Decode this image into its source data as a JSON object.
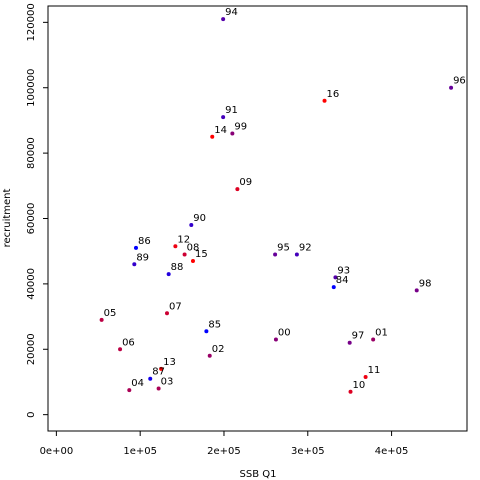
{
  "chart_data": {
    "type": "scatter",
    "title": "",
    "xlabel": "SSB Q1",
    "ylabel": "recruitment",
    "xlim": [
      -10000,
      490000
    ],
    "ylim": [
      -5000,
      125000
    ],
    "x_ticks": [
      0,
      100000,
      200000,
      300000,
      400000
    ],
    "x_tick_labels": [
      "0e+00",
      "1e+05",
      "2e+05",
      "3e+05",
      "4e+05"
    ],
    "y_ticks": [
      0,
      20000,
      40000,
      60000,
      80000,
      100000,
      120000
    ],
    "y_tick_labels": [
      "0",
      "20000",
      "40000",
      "60000",
      "80000",
      "100000",
      "120000"
    ],
    "grid": false,
    "legend": "none",
    "colors": {
      "early": "#0000ff",
      "late": "#ff0000",
      "frame": "#000000"
    },
    "points": [
      {
        "label": "86",
        "x": 95000,
        "y": 51000,
        "color": "#0000ff"
      },
      {
        "label": "87",
        "x": 112000,
        "y": 11000,
        "color": "#1100ee"
      },
      {
        "label": "88",
        "x": 134000,
        "y": 43000,
        "color": "#2200dd"
      },
      {
        "label": "89",
        "x": 93000,
        "y": 46000,
        "color": "#3300cc"
      },
      {
        "label": "90",
        "x": 161000,
        "y": 58000,
        "color": "#3300cc"
      },
      {
        "label": "91",
        "x": 199000,
        "y": 91000,
        "color": "#4400bb"
      },
      {
        "label": "92",
        "x": 287000,
        "y": 49000,
        "color": "#4400bb"
      },
      {
        "label": "93",
        "x": 333000,
        "y": 42000,
        "color": "#5500aa"
      },
      {
        "label": "94",
        "x": 199000,
        "y": 121000,
        "color": "#5500aa"
      },
      {
        "label": "95",
        "x": 261000,
        "y": 49000,
        "color": "#660099"
      },
      {
        "label": "96",
        "x": 471000,
        "y": 100000,
        "color": "#660099"
      },
      {
        "label": "97",
        "x": 350000,
        "y": 22000,
        "color": "#770088"
      },
      {
        "label": "98",
        "x": 430000,
        "y": 38000,
        "color": "#770088"
      },
      {
        "label": "99",
        "x": 210000,
        "y": 86000,
        "color": "#880077"
      },
      {
        "label": "00",
        "x": 262000,
        "y": 23000,
        "color": "#880077"
      },
      {
        "label": "01",
        "x": 378000,
        "y": 23000,
        "color": "#990066"
      },
      {
        "label": "02",
        "x": 183000,
        "y": 18000,
        "color": "#990066"
      },
      {
        "label": "03",
        "x": 122000,
        "y": 8000,
        "color": "#aa0055"
      },
      {
        "label": "04",
        "x": 87000,
        "y": 7500,
        "color": "#aa0055"
      },
      {
        "label": "05",
        "x": 54000,
        "y": 29000,
        "color": "#bb0044"
      },
      {
        "label": "06",
        "x": 76000,
        "y": 20000,
        "color": "#bb0044"
      },
      {
        "label": "07",
        "x": 132000,
        "y": 31000,
        "color": "#cc0033"
      },
      {
        "label": "08",
        "x": 153000,
        "y": 49000,
        "color": "#cc0033"
      },
      {
        "label": "09",
        "x": 216000,
        "y": 69000,
        "color": "#dd0022"
      },
      {
        "label": "10",
        "x": 351000,
        "y": 7000,
        "color": "#dd0022"
      },
      {
        "label": "11",
        "x": 369000,
        "y": 11500,
        "color": "#ee0011"
      },
      {
        "label": "12",
        "x": 142000,
        "y": 51500,
        "color": "#ee0011"
      },
      {
        "label": "13",
        "x": 125000,
        "y": 14000,
        "color": "#ff0000"
      },
      {
        "label": "14",
        "x": 186000,
        "y": 85000,
        "color": "#ff0000"
      },
      {
        "label": "15",
        "x": 163000,
        "y": 47000,
        "color": "#ff0000"
      },
      {
        "label": "16",
        "x": 320000,
        "y": 96000,
        "color": "#ff0000"
      },
      {
        "label": "84",
        "x": 331000,
        "y": 39000,
        "color": "#0000ff"
      },
      {
        "label": "85",
        "x": 179000,
        "y": 25500,
        "color": "#0000ff"
      }
    ]
  }
}
